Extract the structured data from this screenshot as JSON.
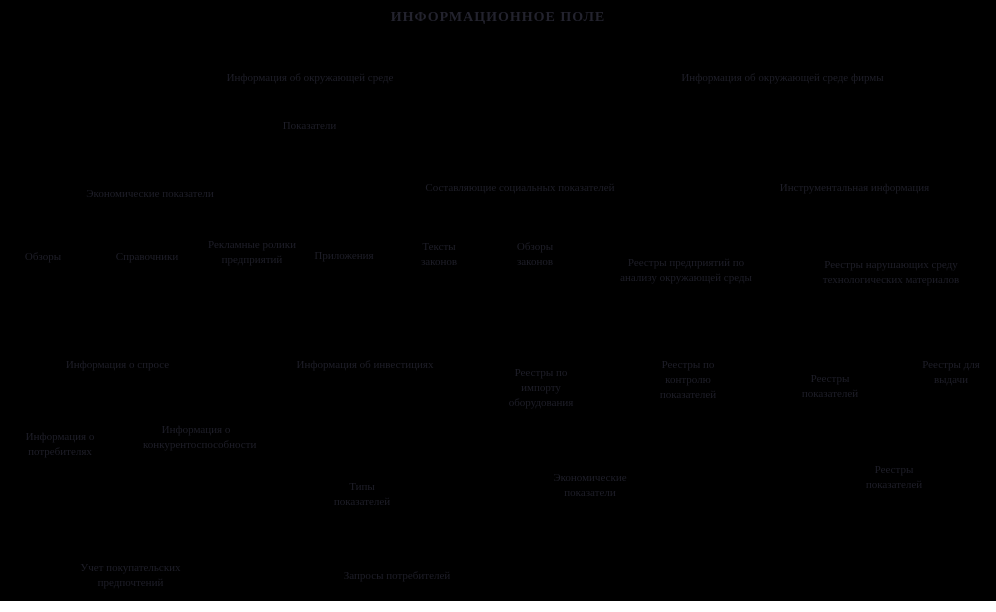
{
  "title": "ИНФОРМАЦИОННОЕ ПОЛЕ",
  "colors": {
    "background": "#000000",
    "text": "#1e1e28",
    "title_text": "#23232e",
    "bottom_bar": "#ffffff"
  },
  "nodes": {
    "env": "Информация об окружающей среде",
    "env_firm": "Информация об окружающей среде фирмы",
    "indicators": "Показатели",
    "economic": "Экономические показатели",
    "social": "Составляющие социальных показателей",
    "instrumental": "Инструментальная информация",
    "reviews": "Обзоры",
    "directories": "Справочники",
    "ads": "Рекламные ролики предприятий",
    "apps": "Приложения",
    "law_texts": "Тексты законов",
    "law_reviews": "Обзоры законов",
    "registry_env": "Реестры предприятий по анализу окружающей среды",
    "registry_materials": "Реестры нарушающих среду технологических материалов",
    "demand": "Информация о спросе",
    "investments": "Информация об инвестициях",
    "registry_import": "Реестры по импорту оборудования",
    "registry_control": "Реестры по контролю показателей",
    "registry_indicators": "Реестры показателей",
    "registry_issue": "Реестры для выдачи",
    "consumers": "Информация о потребителях",
    "competitiveness": "Информация о конкурентоспособности",
    "indicator_types": "Типы показателей",
    "economic_lower": "Экономические показатели",
    "registry_indicators_lower": "Реестры показателей",
    "preferences": "Учет покупательских предпочтений",
    "requests": "Запросы потребителей"
  }
}
